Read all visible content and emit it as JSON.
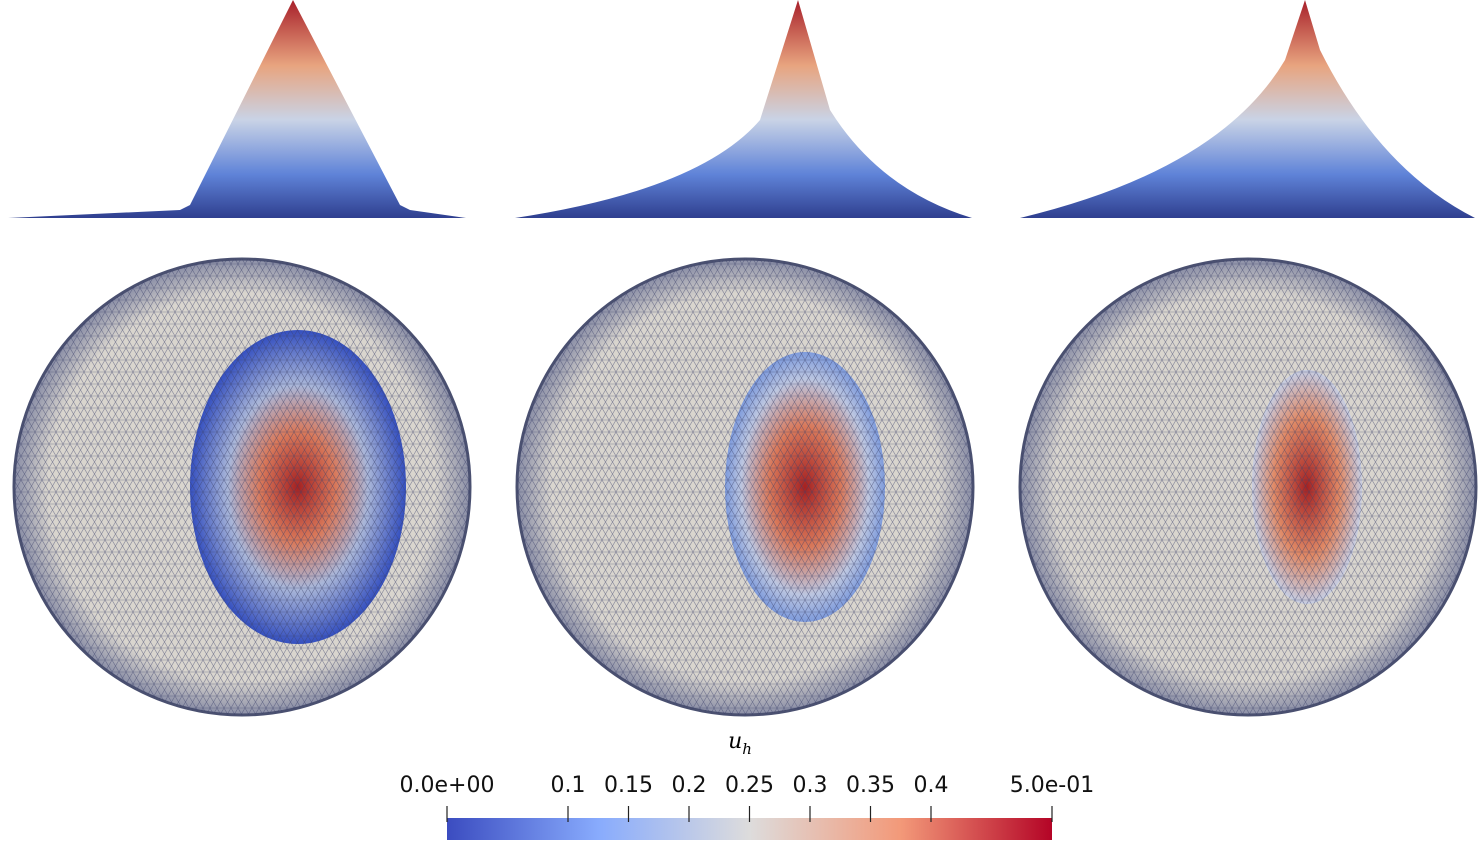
{
  "colorbar": {
    "title": "u",
    "title_subscript": "h",
    "range": [
      0,
      0.5
    ],
    "ticks": [
      {
        "value": 0,
        "label": "0.0e+00"
      },
      0.1,
      0.15,
      0.2,
      0.25,
      0.3,
      0.35,
      0.4,
      {
        "value": 0.5,
        "label": "5.0e-01"
      }
    ]
  }
}
